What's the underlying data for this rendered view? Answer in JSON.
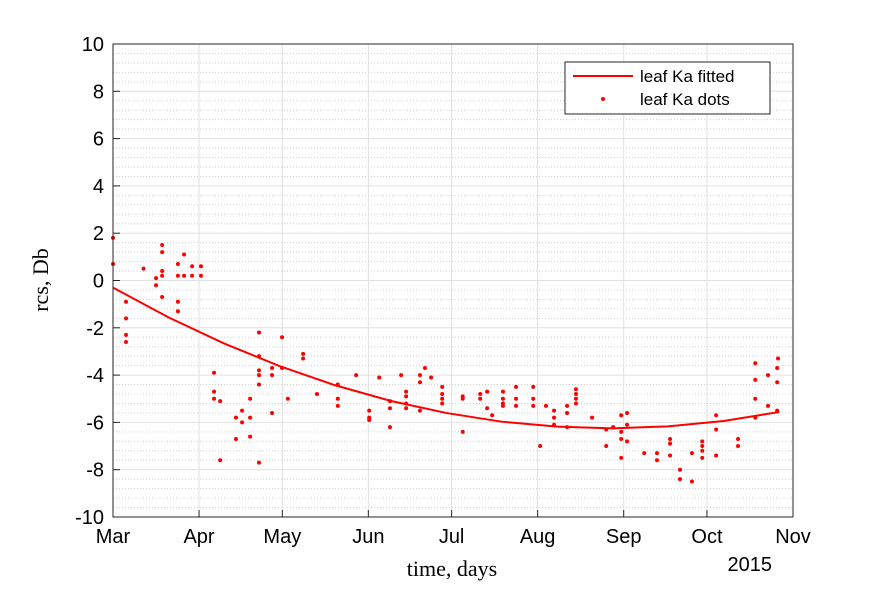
{
  "chart_data": {
    "type": "scatter",
    "xlabel": "time, days",
    "ylabel": "rcs, Db",
    "x_secondary_label": "2015",
    "xlim": [
      0,
      245
    ],
    "ylim": [
      -10,
      10
    ],
    "xticks": [
      {
        "value": 0,
        "label": "Mar"
      },
      {
        "value": 31,
        "label": "Apr"
      },
      {
        "value": 61,
        "label": "May"
      },
      {
        "value": 92,
        "label": "Jun"
      },
      {
        "value": 122,
        "label": "Jul"
      },
      {
        "value": 153,
        "label": "Aug"
      },
      {
        "value": 184,
        "label": "Sep"
      },
      {
        "value": 214,
        "label": "Oct"
      },
      {
        "value": 245,
        "label": "Nov"
      }
    ],
    "yticks": [
      -10,
      -8,
      -6,
      -4,
      -2,
      0,
      2,
      4,
      6,
      8,
      10
    ],
    "grid": true,
    "minor_grid": true,
    "legend": "upper right",
    "series": [
      {
        "name": "leaf Ka fitted",
        "type": "line",
        "color": "#ff0000",
        "x": [
          0,
          20,
          40,
          60,
          80,
          100,
          120,
          140,
          160,
          180,
          200,
          220,
          240
        ],
        "values": [
          -0.3,
          -1.56,
          -2.66,
          -3.62,
          -4.43,
          -5.09,
          -5.6,
          -5.97,
          -6.18,
          -6.25,
          -6.17,
          -5.94,
          -5.56
        ]
      },
      {
        "name": "leaf Ka dots",
        "type": "scatter",
        "color": "#ff0000",
        "x": [
          0,
          0,
          4.7,
          4.7,
          4.7,
          4.7,
          11,
          15.5,
          15.5,
          17.7,
          17.7,
          17.7,
          17.7,
          17.7,
          23.4,
          23.4,
          23.4,
          23.4,
          25.6,
          25.6,
          28.5,
          28.5,
          31.7,
          31.7,
          36.4,
          36.4,
          36.4,
          38.6,
          38.6,
          44.3,
          44.3,
          46.5,
          46.5,
          49.4,
          49.4,
          49.4,
          52.6,
          52.6,
          52.6,
          52.6,
          52.6,
          52.6,
          57.3,
          57.3,
          57.3,
          60.9,
          60.9,
          63,
          68.5,
          68.5,
          73.5,
          81,
          81,
          81,
          87.6,
          92.3,
          92.3,
          92.3,
          95.9,
          99.8,
          99.8,
          99.8,
          103.8,
          105.6,
          105.6,
          105.6,
          105.6,
          110.6,
          110.6,
          110.6,
          112.4,
          114.6,
          118.6,
          118.6,
          118.6,
          118.6,
          126,
          126,
          126,
          132.3,
          132.3,
          134.8,
          134.8,
          136.6,
          140.5,
          140.5,
          140.5,
          140.5,
          145.2,
          145.2,
          145.2,
          151.4,
          151.4,
          151.4,
          153.9,
          156,
          158.9,
          158.9,
          158.9,
          163.6,
          163.6,
          163.6,
          166.8,
          166.8,
          166.8,
          166.8,
          172.6,
          177.7,
          177.7,
          180.2,
          183.1,
          183.1,
          183.1,
          183.1,
          185.2,
          185.2,
          185.2,
          191.4,
          196,
          196,
          200.7,
          200.7,
          200.7,
          204.3,
          204.3,
          208.6,
          208.6,
          212.3,
          212.3,
          212.3,
          212.3,
          217.3,
          217.3,
          217.3,
          225.2,
          225.2,
          231.4,
          231.4,
          231.4,
          231.4,
          236,
          236,
          239.3,
          239.3,
          239.3,
          239.6
        ],
        "values": [
          1.8,
          0.7,
          -0.9,
          -1.6,
          -2.3,
          -2.6,
          0.5,
          0.1,
          -0.2,
          1.5,
          1.2,
          0.4,
          0.2,
          -0.7,
          0.7,
          0.2,
          -0.9,
          -1.3,
          1.1,
          0.2,
          0.6,
          0.2,
          0.6,
          0.2,
          -3.9,
          -4.7,
          -5.0,
          -5.1,
          -7.6,
          -5.8,
          -6.7,
          -5.5,
          -6.0,
          -5.0,
          -5.8,
          -6.6,
          -2.2,
          -3.2,
          -3.8,
          -4.0,
          -4.4,
          -7.7,
          -3.7,
          -4.0,
          -5.6,
          -2.4,
          -3.7,
          -5.0,
          -3.1,
          -3.3,
          -4.8,
          -4.4,
          -5.0,
          -5.3,
          -4.0,
          -5.5,
          -5.8,
          -5.9,
          -4.1,
          -5.1,
          -5.4,
          -6.2,
          -4.0,
          -4.7,
          -4.9,
          -5.2,
          -5.4,
          -4.0,
          -4.3,
          -5.5,
          -3.7,
          -4.1,
          -4.5,
          -4.8,
          -5.0,
          -5.2,
          -4.9,
          -5.0,
          -6.4,
          -4.8,
          -5.0,
          -4.7,
          -5.4,
          -5.7,
          -4.7,
          -5.0,
          -5.2,
          -5.3,
          -4.5,
          -5.0,
          -5.3,
          -4.5,
          -5.0,
          -5.3,
          -7.0,
          -5.3,
          -5.5,
          -5.8,
          -6.1,
          -5.3,
          -5.6,
          -6.2,
          -4.6,
          -4.8,
          -5.0,
          -5.2,
          -5.8,
          -6.3,
          -7.0,
          -6.2,
          -5.7,
          -6.4,
          -6.7,
          -7.5,
          -5.6,
          -6.1,
          -6.8,
          -7.3,
          -7.3,
          -7.6,
          -6.7,
          -6.9,
          -7.4,
          -8.0,
          -8.4,
          -7.3,
          -8.5,
          -6.8,
          -7.0,
          -7.2,
          -7.5,
          -5.7,
          -6.3,
          -7.4,
          -6.7,
          -7.0,
          -3.5,
          -4.2,
          -5.0,
          -5.8,
          -4.0,
          -5.3,
          -3.7,
          -4.3,
          -5.5,
          -3.3
        ]
      }
    ]
  }
}
